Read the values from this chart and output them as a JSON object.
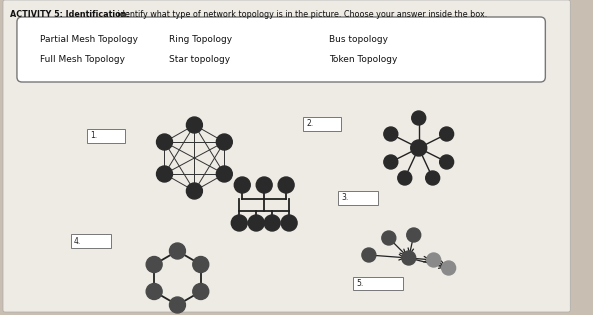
{
  "title_bold": "ACTIVITY 5: Identification:",
  "title_rest": " identify what type of network topology is in the picture. Choose your answer inside the box.",
  "box_items_row1_col1": "Partial Mesh Topology",
  "box_items_row1_col2": "Ring Topology",
  "box_items_row1_col3": "Bus topology",
  "box_items_row2_col1": "Full Mesh Topology",
  "box_items_row2_col2": "Star topology",
  "box_items_row2_col3": "Token Topology",
  "bg_color": "#c8bfb2",
  "paper_color": "#eeebe5",
  "node_dark": "#2a2a2a",
  "node_mid": "#4a4a4a",
  "node_light": "#8a8a8a",
  "edge_color": "#222222",
  "label_1": "1.",
  "label_2": "2.",
  "label_3": "3.",
  "label_4": "4.",
  "label_5": "5."
}
